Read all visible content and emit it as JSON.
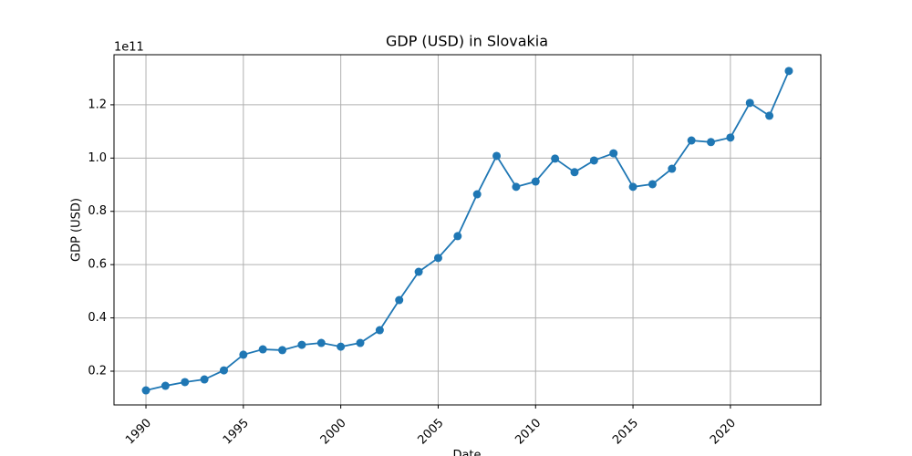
{
  "chart_data": {
    "type": "line",
    "title": "GDP (USD) in Slovakia",
    "x_label": "Date",
    "y_label": "GDP (USD)",
    "y_offset_label": "1e11",
    "x": [
      1990,
      1991,
      1992,
      1993,
      1994,
      1995,
      1996,
      1997,
      1998,
      1999,
      2000,
      2001,
      2002,
      2003,
      2004,
      2005,
      2006,
      2007,
      2008,
      2009,
      2010,
      2011,
      2012,
      2013,
      2014,
      2015,
      2016,
      2017,
      2018,
      2019,
      2020,
      2021,
      2022,
      2023
    ],
    "series": [
      {
        "name": "GDP (USD)",
        "color": "#1f77b4",
        "values": [
          0.128,
          0.145,
          0.159,
          0.169,
          0.203,
          0.262,
          0.282,
          0.279,
          0.299,
          0.306,
          0.292,
          0.306,
          0.354,
          0.467,
          0.573,
          0.625,
          0.707,
          0.864,
          1.008,
          0.892,
          0.912,
          0.998,
          0.947,
          0.991,
          1.018,
          0.892,
          0.902,
          0.96,
          1.066,
          1.06,
          1.077,
          1.207,
          1.159,
          1.327
        ]
      }
    ],
    "xlim": [
      1988.36,
      2024.64
    ],
    "xticks": [
      1990,
      1995,
      2000,
      2005,
      2010,
      2015,
      2020
    ],
    "ylim": [
      0.0733,
      1.388
    ],
    "yticks": [
      0.2,
      0.4,
      0.6,
      0.8,
      1.0,
      1.2
    ],
    "grid": true
  }
}
